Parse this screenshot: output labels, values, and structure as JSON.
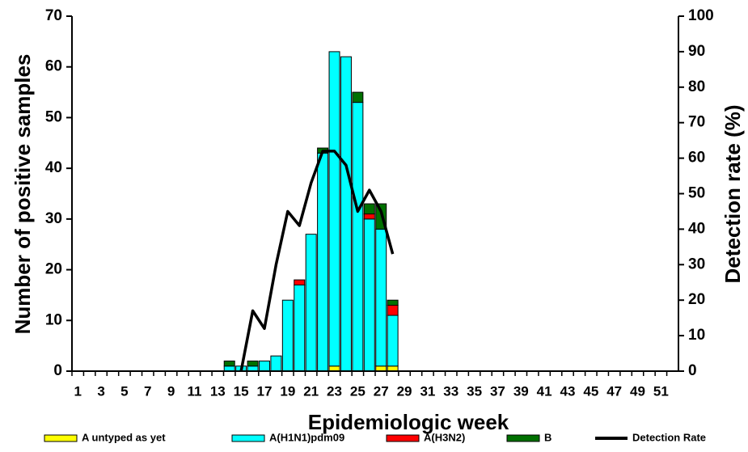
{
  "chart_data": {
    "type": "bar",
    "xlabel": "Epidemiologic week",
    "ylabel": "Number of positive samples",
    "y2label": "Detection rate (%)",
    "categories": [
      1,
      null,
      3,
      null,
      5,
      null,
      7,
      null,
      9,
      null,
      11,
      null,
      13,
      null,
      15,
      null,
      17,
      null,
      19,
      null,
      21,
      null,
      23,
      null,
      25,
      null,
      27,
      null,
      29,
      null,
      31,
      null,
      33,
      null,
      35,
      null,
      37,
      null,
      39,
      null,
      41,
      null,
      43,
      null,
      45,
      null,
      47,
      null,
      49,
      null,
      51,
      null
    ],
    "series": [
      {
        "name": "A untyped as yet",
        "color": "#ffff00",
        "values": [
          null,
          null,
          null,
          null,
          null,
          null,
          null,
          null,
          null,
          null,
          null,
          null,
          null,
          0,
          0,
          0,
          0,
          0,
          0,
          0,
          0,
          0,
          1,
          0,
          0,
          0,
          1,
          1,
          null,
          null,
          null,
          null,
          null,
          null,
          null,
          null,
          null,
          null,
          null,
          null,
          null,
          null,
          null,
          null,
          null,
          null,
          null,
          null,
          null,
          null,
          null,
          null
        ]
      },
      {
        "name": "A(H1N1)pdm09",
        "color": "#00ffff",
        "values": [
          null,
          null,
          null,
          null,
          null,
          null,
          null,
          null,
          null,
          null,
          null,
          null,
          null,
          1,
          1,
          1,
          2,
          3,
          14,
          17,
          27,
          43,
          62,
          62,
          53,
          30,
          27,
          10,
          null,
          null,
          null,
          null,
          null,
          null,
          null,
          null,
          null,
          null,
          null,
          null,
          null,
          null,
          null,
          null,
          null,
          null,
          null,
          null,
          null,
          null,
          null,
          null
        ]
      },
      {
        "name": "A(H3N2)",
        "color": "#ff0000",
        "values": [
          null,
          null,
          null,
          null,
          null,
          null,
          null,
          null,
          null,
          null,
          null,
          null,
          null,
          0,
          0,
          0,
          0,
          0,
          0,
          1,
          0,
          0,
          0,
          0,
          0,
          1,
          0,
          2,
          null,
          null,
          null,
          null,
          null,
          null,
          null,
          null,
          null,
          null,
          null,
          null,
          null,
          null,
          null,
          null,
          null,
          null,
          null,
          null,
          null,
          null,
          null,
          null
        ]
      },
      {
        "name": "B",
        "color": "#007000",
        "values": [
          null,
          null,
          null,
          null,
          null,
          null,
          null,
          null,
          null,
          null,
          null,
          null,
          null,
          1,
          0,
          1,
          0,
          0,
          0,
          0,
          0,
          1,
          0,
          0,
          2,
          2,
          5,
          1,
          null,
          null,
          null,
          null,
          null,
          null,
          null,
          null,
          null,
          null,
          null,
          null,
          null,
          null,
          null,
          null,
          null,
          null,
          null,
          null,
          null,
          null,
          null,
          null
        ]
      },
      {
        "name": "Detection Rate",
        "type": "line",
        "axis": "y2",
        "color": "#000000",
        "values": [
          null,
          null,
          null,
          null,
          null,
          null,
          null,
          null,
          null,
          null,
          null,
          null,
          null,
          null,
          0,
          17,
          12,
          30,
          45,
          41,
          53,
          62,
          62,
          58,
          45,
          51,
          45,
          33,
          null,
          null,
          null,
          null,
          null,
          null,
          null,
          null,
          null,
          null,
          null,
          null,
          null,
          null,
          null,
          null,
          null,
          null,
          null,
          null,
          null,
          null,
          null,
          null
        ]
      }
    ],
    "ylim": [
      0,
      70
    ],
    "yticks": [
      0,
      10,
      20,
      30,
      40,
      50,
      60,
      70
    ],
    "y2lim": [
      0,
      100
    ],
    "y2ticks": [
      0,
      10,
      20,
      30,
      40,
      50,
      60,
      70,
      80,
      90,
      100
    ],
    "legend": "bottom"
  }
}
